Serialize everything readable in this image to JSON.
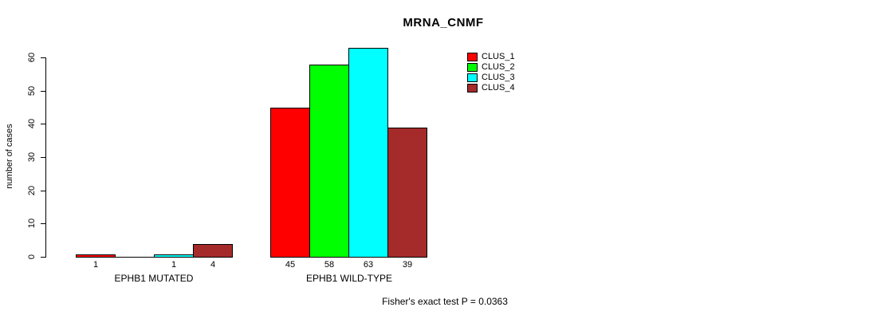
{
  "chart_data": {
    "type": "bar",
    "title": "MRNA_CNMF",
    "xlabel": "",
    "ylabel": "number of cases",
    "ylim": [
      0,
      60
    ],
    "yticks": [
      0,
      10,
      20,
      30,
      40,
      50,
      60
    ],
    "grid": false,
    "legend_position": "top-right",
    "categories": [
      "EPHB1 MUTATED",
      "EPHB1 WILD-TYPE"
    ],
    "series": [
      {
        "name": "CLUS_1",
        "color": "#FF0000",
        "values": [
          1,
          45
        ]
      },
      {
        "name": "CLUS_2",
        "color": "#00FF00",
        "values": [
          0,
          58
        ]
      },
      {
        "name": "CLUS_3",
        "color": "#00FFFF",
        "values": [
          1,
          63
        ]
      },
      {
        "name": "CLUS_4",
        "color": "#A52A2A",
        "values": [
          4,
          39
        ]
      }
    ],
    "bar_labels": [
      [
        "1",
        "",
        "1",
        "4"
      ],
      [
        "45",
        "58",
        "63",
        "39"
      ]
    ]
  },
  "footer": {
    "text": "Fisher's exact test P = 0.0363"
  },
  "colors": {
    "background": "#FFFFFF",
    "axis": "#000000",
    "text": "#000000"
  }
}
